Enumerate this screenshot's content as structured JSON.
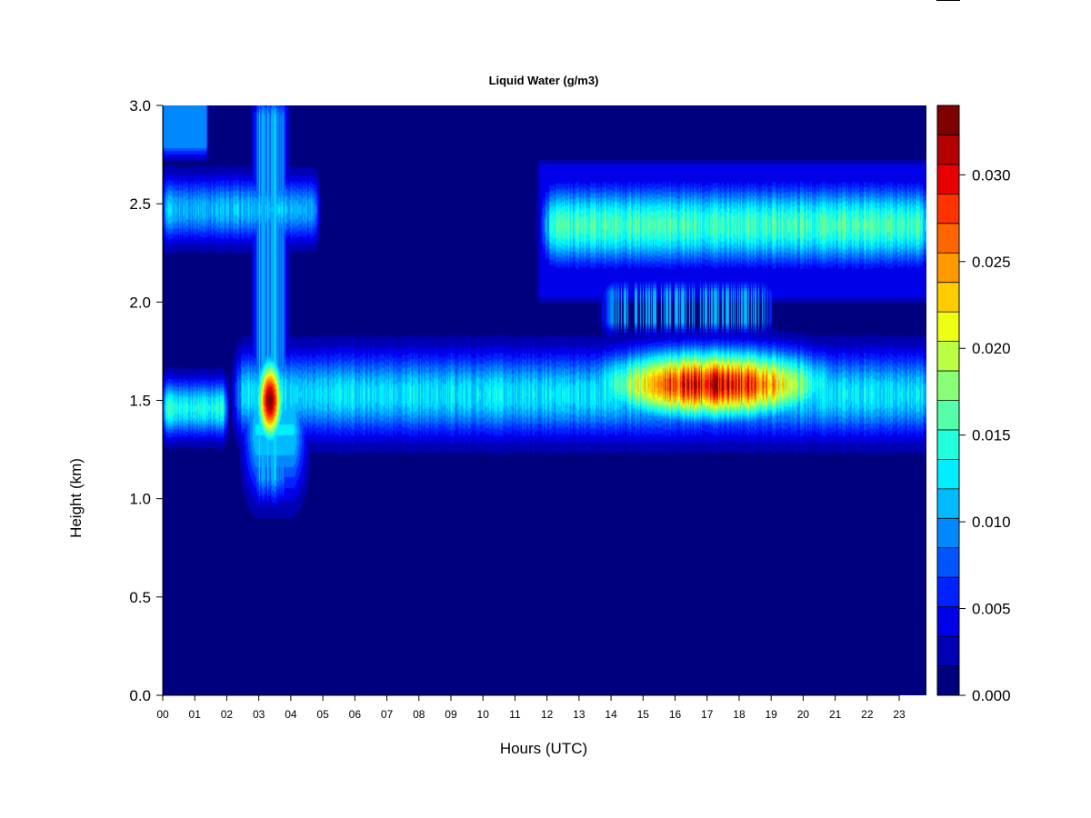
{
  "chart_data": {
    "type": "heatmap",
    "title": "Liquid Water (g/m3)",
    "xlabel": "Hours (UTC)",
    "ylabel": "Height (km)",
    "xlim": [
      0,
      23.85
    ],
    "ylim": [
      0.0,
      3.0
    ],
    "x_ticks": [
      "00",
      "01",
      "02",
      "03",
      "04",
      "05",
      "06",
      "07",
      "08",
      "09",
      "10",
      "11",
      "12",
      "13",
      "14",
      "15",
      "16",
      "17",
      "18",
      "19",
      "20",
      "21",
      "22",
      "23"
    ],
    "y_ticks": [
      "0.0",
      "0.5",
      "1.0",
      "1.5",
      "2.0",
      "2.5",
      "3.0"
    ],
    "colorbar": {
      "range": [
        0.0,
        0.034
      ],
      "tick_values": [
        0.0,
        0.005,
        0.01,
        0.015,
        0.02,
        0.025,
        0.03
      ],
      "tick_labels": [
        "0.000",
        "0.005",
        "0.010",
        "0.015",
        "0.020",
        "0.025",
        "0.030"
      ],
      "colors": [
        "#00007F",
        "#0000B3",
        "#0000E8",
        "#0022FF",
        "#0055FF",
        "#0088FF",
        "#00BBFF",
        "#00EEFF",
        "#22FFDD",
        "#55FFAA",
        "#88FF77",
        "#BBFF44",
        "#EEFF11",
        "#FFCC00",
        "#FF9900",
        "#FF6600",
        "#FF3300",
        "#E80000",
        "#B30000",
        "#7F0000"
      ]
    },
    "features": [
      {
        "name": "upper cloud layer, early",
        "x_range": [
          0.0,
          1.4
        ],
        "height_range": [
          2.75,
          3.0
        ],
        "peak_value": 0.01
      },
      {
        "name": "cloud layer, early",
        "x_range": [
          0.0,
          4.9
        ],
        "height_range": [
          2.25,
          2.7
        ],
        "peak_value": 0.011
      },
      {
        "name": "low cloud layer, early",
        "x_range": [
          0.0,
          2.0
        ],
        "height_range": [
          1.22,
          1.68
        ],
        "peak_value": 0.014
      },
      {
        "name": "convective column",
        "x_range": [
          2.7,
          4.2
        ],
        "height_range": [
          0.92,
          3.0
        ],
        "peak_value": 0.033
      },
      {
        "name": "main cloud layer",
        "x_range": [
          2.2,
          23.85
        ],
        "height_range": [
          1.15,
          1.88
        ],
        "peak_value": 0.031
      },
      {
        "name": "upper cloud layer, late",
        "x_range": [
          11.7,
          23.85
        ],
        "height_range": [
          2.02,
          2.7
        ],
        "peak_value": 0.016
      }
    ]
  }
}
